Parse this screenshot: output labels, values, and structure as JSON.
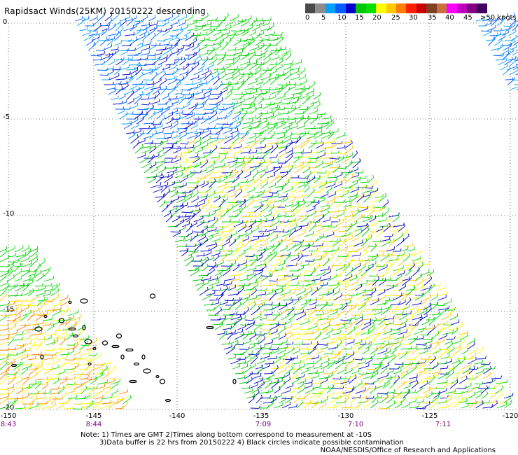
{
  "title": "Rapidsact Winds(25KM) 20150222 descending",
  "colorbar": {
    "colors": [
      "#4a4a4a",
      "#8c8c8c",
      "#00a0ff",
      "#0060ff",
      "#0000c8",
      "#00c800",
      "#00e000",
      "#ffff00",
      "#ffc800",
      "#ff8000",
      "#ff2000",
      "#c80000",
      "#804020",
      "#c87040",
      "#ff00ff",
      "#c000c0",
      "#800080",
      "#400060"
    ],
    "labels": [
      "0",
      "5",
      "10",
      "15",
      "20",
      "25",
      "30",
      "35",
      "40",
      "45",
      ">50 knots"
    ]
  },
  "y_ticks": [
    "0",
    "-5",
    "-10",
    "-15",
    "-20"
  ],
  "x_ticks": [
    "-150",
    "-145",
    "-140",
    "-135",
    "-130",
    "-125",
    "-120"
  ],
  "time_labels": [
    "8:43",
    "8:44",
    "7:09",
    "7:10",
    "7:11"
  ],
  "notes": {
    "line1": "Note: 1) Times are GMT 2)Times along bottom correspond to measurement at -10S",
    "line2": "3)Data buffer is 22 hrs from 20150222 4) Black circles indicate possible contamination"
  },
  "credit": "NOAA/NESDIS/Office of Research and Applications"
}
